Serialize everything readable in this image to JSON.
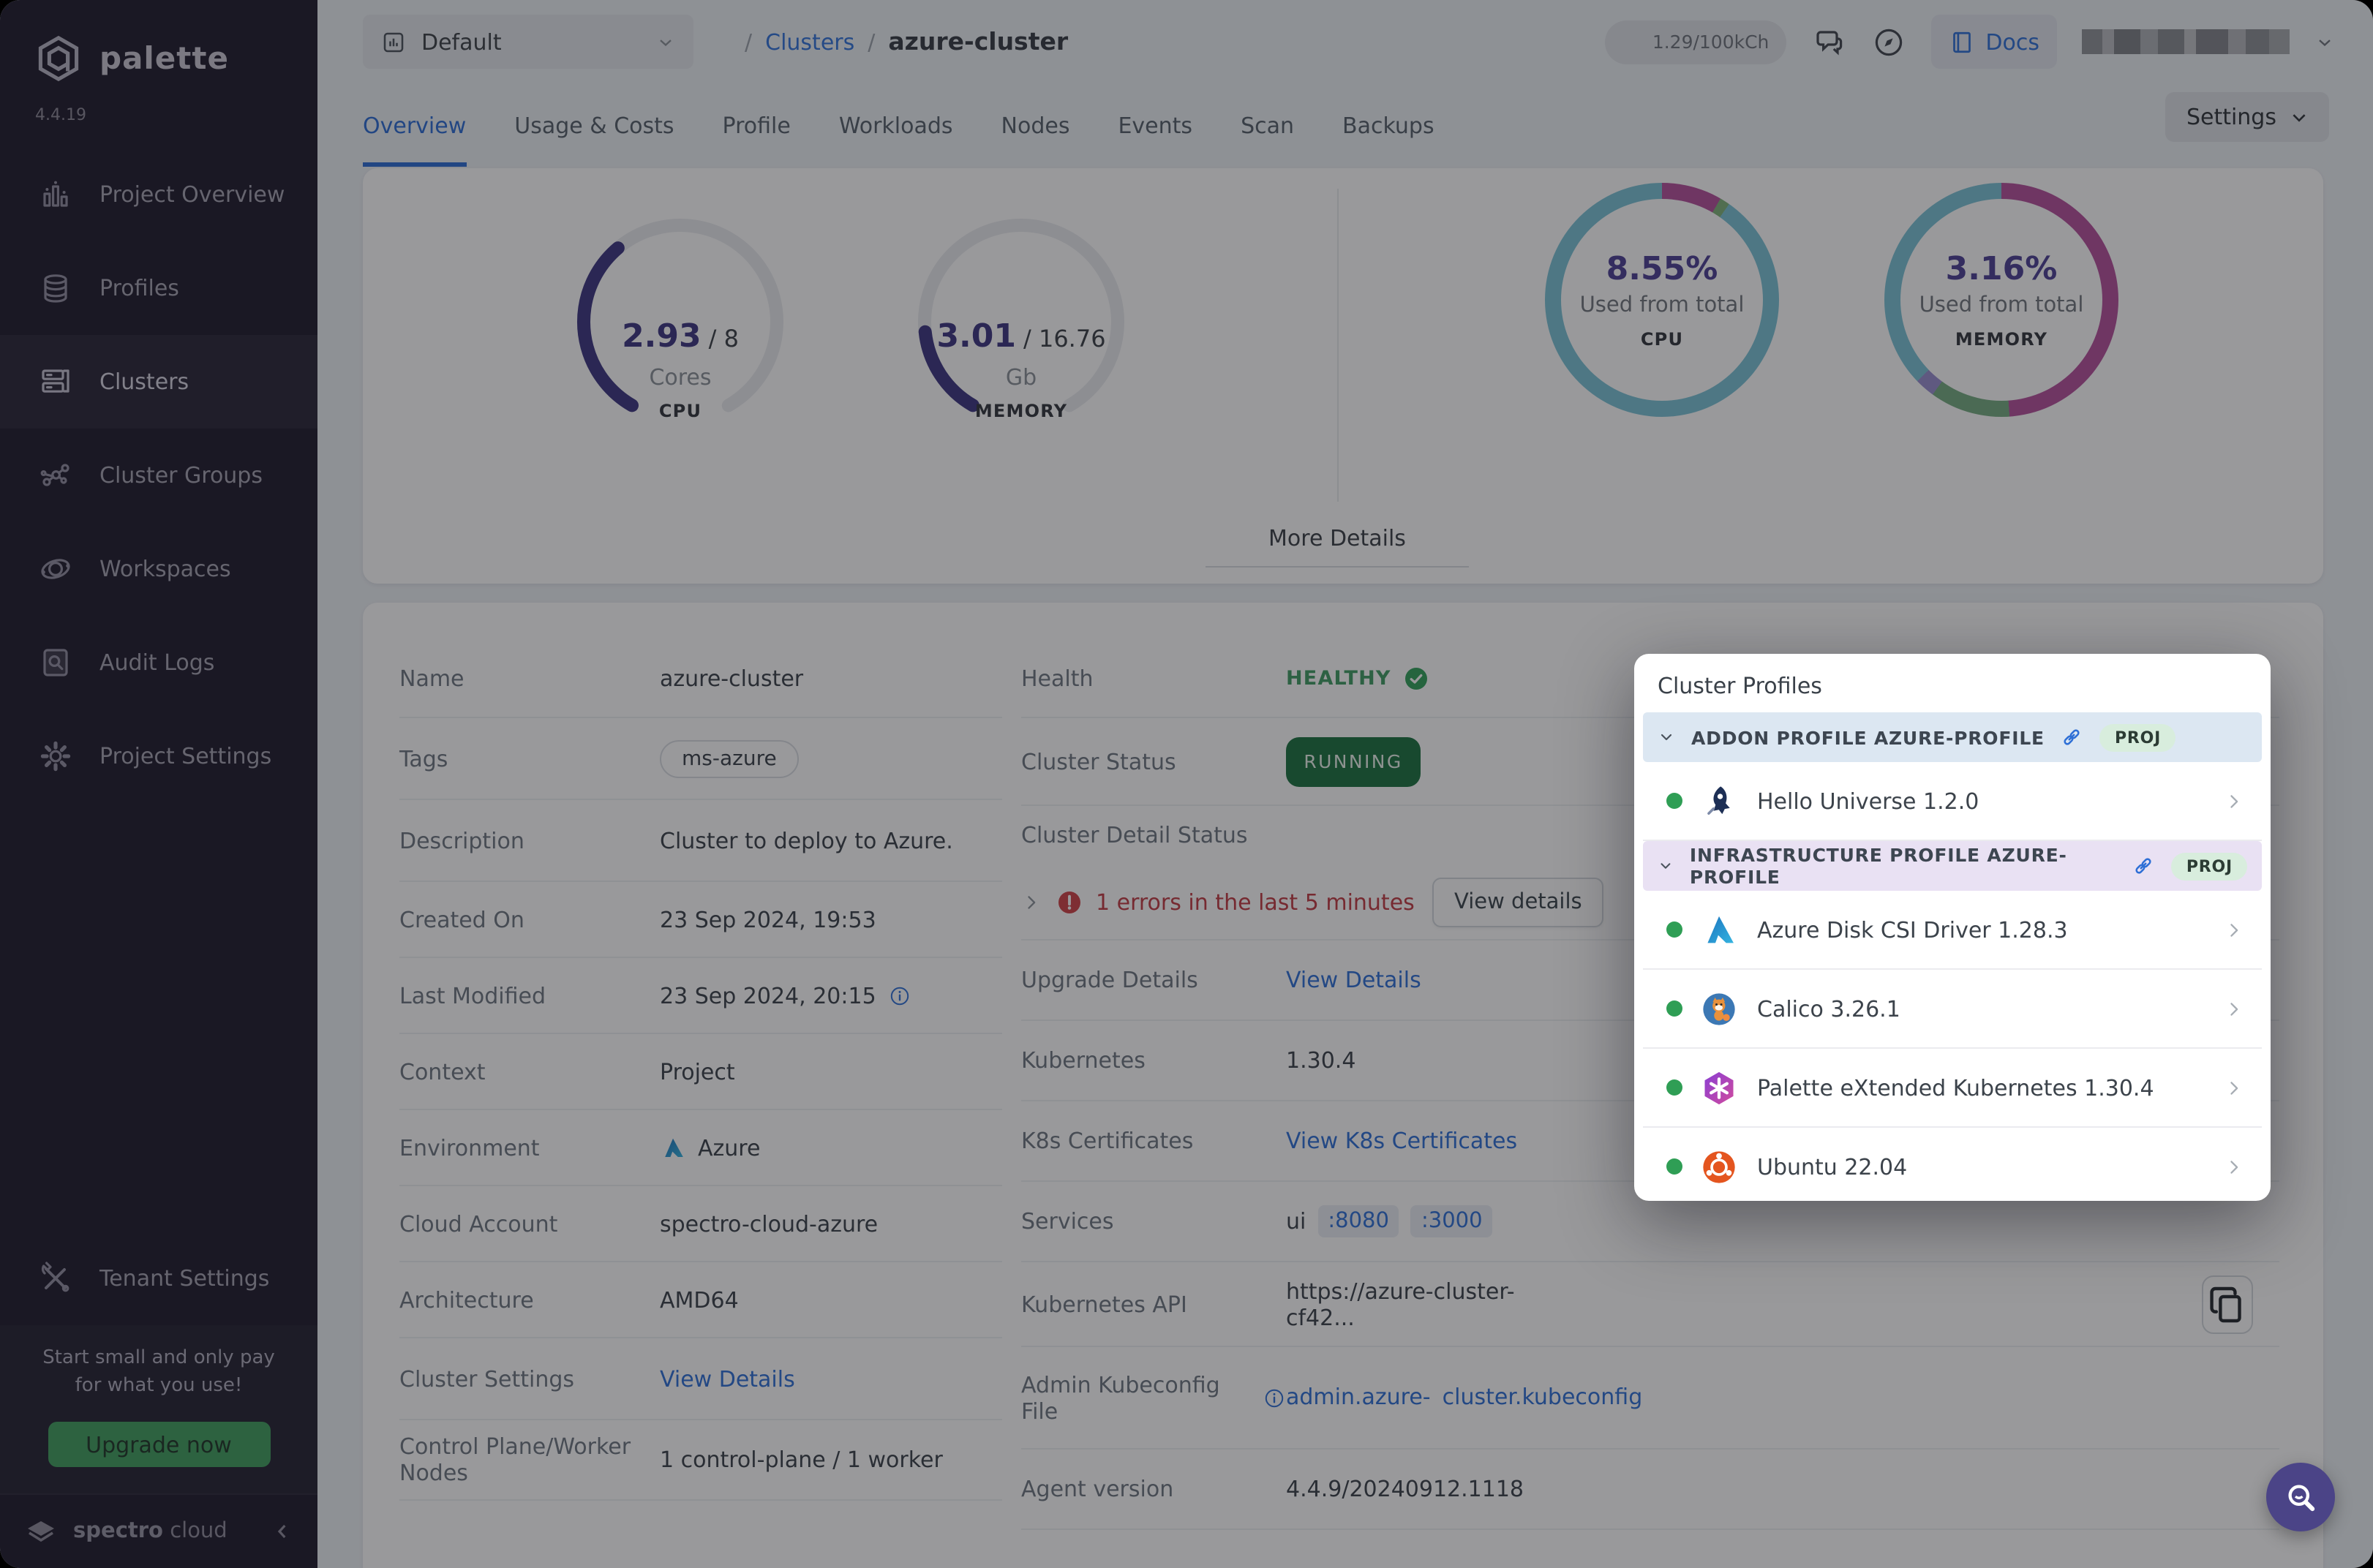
{
  "app": {
    "brand": "palette",
    "version": "4.4.19",
    "footer_brand": {
      "bold": "spectro",
      "light": "cloud"
    }
  },
  "sidebar": {
    "items": [
      {
        "icon": "bar-chart",
        "label": "Project Overview",
        "active": false
      },
      {
        "icon": "layers",
        "label": "Profiles",
        "active": false
      },
      {
        "icon": "server",
        "label": "Clusters",
        "active": true
      },
      {
        "icon": "network",
        "label": "Cluster Groups",
        "active": false
      },
      {
        "icon": "orbit",
        "label": "Workspaces",
        "active": false
      },
      {
        "icon": "audit",
        "label": "Audit Logs",
        "active": false
      },
      {
        "icon": "gear",
        "label": "Project Settings",
        "active": false
      }
    ],
    "tenant": {
      "icon": "tools",
      "label": "Tenant Settings"
    },
    "promo": {
      "line1": "Start small and only pay",
      "line2": "for what you use!",
      "cta": "Upgrade now"
    }
  },
  "topbar": {
    "project_selector": "Default",
    "breadcrumb": {
      "sep": "/",
      "section": "Clusters",
      "current": "azure-cluster"
    },
    "usage_pill": "1.29/100kCh",
    "docs_label": "Docs"
  },
  "tabs": {
    "items": [
      "Overview",
      "Usage & Costs",
      "Profile",
      "Workloads",
      "Nodes",
      "Events",
      "Scan",
      "Backups"
    ],
    "active_index": 0,
    "settings_label": "Settings"
  },
  "overview": {
    "cpu_gauge": {
      "used": "2.93",
      "total": "/ 8",
      "unit": "Cores",
      "label": "CPU",
      "fraction": 0.366
    },
    "memory_gauge": {
      "used": "3.01",
      "total": "/ 16.76",
      "unit": "Gb",
      "label": "MEMORY",
      "fraction": 0.18
    },
    "cpu_donut": {
      "percent": "8.55%",
      "caption": "Used from total",
      "label": "CPU",
      "segments": [
        {
          "color": "#b44f9c",
          "deg": 30
        },
        {
          "color": "#7fb27a",
          "deg": 5
        },
        {
          "color": "#79c2d6",
          "deg": 325
        }
      ]
    },
    "memory_donut": {
      "percent": "3.16%",
      "caption": "Used from total",
      "label": "MEMORY",
      "segments": [
        {
          "color": "#b44f9c",
          "deg": 176
        },
        {
          "color": "#74ab80",
          "deg": 40
        },
        {
          "color": "#988dcf",
          "deg": 10
        },
        {
          "color": "#79c2d6",
          "deg": 134
        }
      ]
    },
    "more_details": "More Details"
  },
  "details": {
    "left": [
      {
        "label": "Name",
        "type": "text",
        "value": "azure-cluster",
        "h": 53
      },
      {
        "label": "Tags",
        "type": "tag",
        "value": "ms-azure",
        "h": 56
      },
      {
        "label": "Description",
        "type": "text",
        "value": "Cluster to deploy to Azure.",
        "h": 56
      },
      {
        "label": "Created On",
        "type": "text",
        "value": "23 Sep 2024, 19:53",
        "h": 52
      },
      {
        "label": "Last Modified",
        "type": "text-info",
        "value": "23 Sep 2024, 20:15",
        "h": 52
      },
      {
        "label": "Context",
        "type": "text",
        "value": "Project",
        "h": 52
      },
      {
        "label": "Environment",
        "type": "azure",
        "value": "Azure",
        "h": 52
      },
      {
        "label": "Cloud Account",
        "type": "text",
        "value": "spectro-cloud-azure",
        "h": 52
      },
      {
        "label": "Architecture",
        "type": "text",
        "value": "AMD64",
        "h": 52
      },
      {
        "label": "Cluster Settings",
        "type": "link",
        "value": "View Details",
        "h": 56
      },
      {
        "label": "Control Plane/Worker Nodes",
        "type": "text",
        "value": "1 control-plane / 1 worker",
        "h": 55
      }
    ],
    "right": [
      {
        "label": "Health",
        "type": "health",
        "value": "HEALTHY",
        "h": 53
      },
      {
        "label": "Cluster Status",
        "type": "badge",
        "value": "RUNNING",
        "h": 60
      },
      {
        "label": "Cluster Detail Status",
        "type": "label-only",
        "h": 40
      },
      {
        "type": "error-row",
        "error": "1 errors in the last 5 minutes",
        "button": "View details",
        "h": 52
      },
      {
        "label": "Upgrade Details",
        "type": "link",
        "value": "View Details",
        "h": 55
      },
      {
        "label": "Kubernetes",
        "type": "text",
        "value": "1.30.4",
        "h": 55
      },
      {
        "label": "K8s Certificates",
        "type": "link",
        "value": "View K8s Certificates",
        "h": 55
      },
      {
        "label": "Services",
        "type": "services",
        "prefix": "ui",
        "ports": [
          ":8080",
          ":3000"
        ],
        "h": 55
      },
      {
        "label": "Kubernetes API",
        "type": "copy",
        "value": "https://azure-cluster-cf42...",
        "h": 58
      },
      {
        "label": "Admin Kubeconfig File",
        "type": "kubeconfig",
        "lines": [
          "admin.azure-",
          "cluster.kubeconfig"
        ],
        "h": 70
      },
      {
        "label": "Agent version",
        "type": "text",
        "value": "4.4.9/20240912.1118",
        "h": 55
      }
    ]
  },
  "cluster_profiles": {
    "title": "Cluster Profiles",
    "sections": [
      {
        "header": "ADDON PROFILE AZURE-PROFILE",
        "badge": "PROJ",
        "tint": "blue",
        "items": [
          {
            "icon": "hello-universe",
            "name": "Hello Universe 1.2.0"
          }
        ]
      },
      {
        "header": "INFRASTRUCTURE PROFILE AZURE-PROFILE",
        "badge": "PROJ",
        "tint": "purple",
        "items": [
          {
            "icon": "azure",
            "name": "Azure Disk CSI Driver 1.28.3"
          },
          {
            "icon": "calico",
            "name": "Calico 3.26.1"
          },
          {
            "icon": "pxk",
            "name": "Palette eXtended Kubernetes 1.30.4"
          },
          {
            "icon": "ubuntu",
            "name": "Ubuntu 22.04"
          }
        ]
      }
    ]
  },
  "fab": {
    "icon": "search-smile"
  },
  "colors": {
    "accent_blue": "#2e6fd6",
    "indigo": "#3c3580",
    "green": "#2f9e55",
    "running_bg": "#19713f",
    "error_red": "#c03a42",
    "donut_teal": "#79c2d6",
    "donut_magenta": "#b44f9c",
    "sidebar_bg": "#1d1a2b",
    "upgrade_green": "#3f9e5e"
  }
}
